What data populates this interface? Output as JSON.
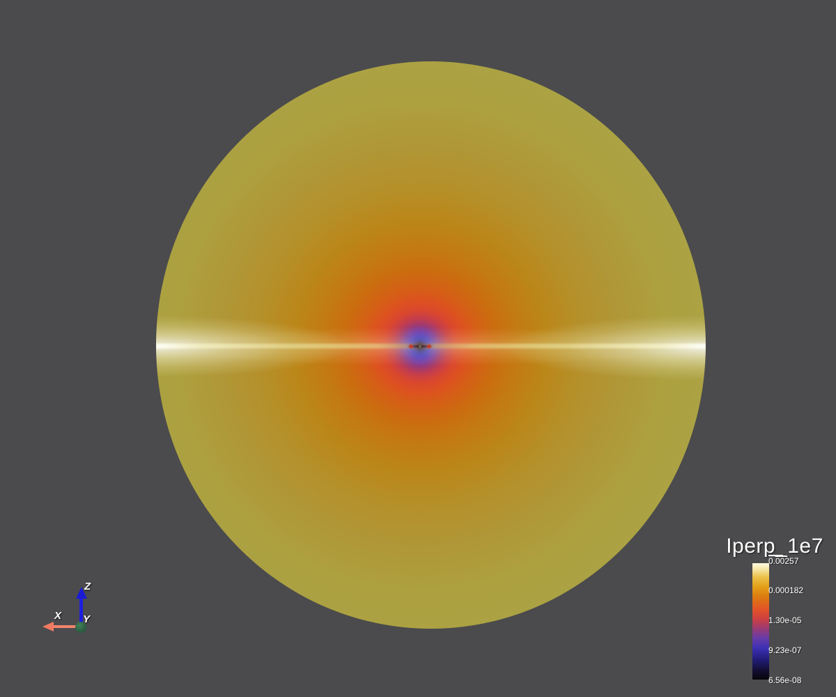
{
  "viewport": {
    "background_color": "#4b4b4d"
  },
  "color_legend": {
    "title": "Iperp_1e7",
    "scale": "logarithmic",
    "tick_labels": [
      "0.00257",
      "0.000182",
      "1.30e-05",
      "9.23e-07",
      "6.56e-08"
    ],
    "colormap_low_to_high": [
      "#070609",
      "#231e7e",
      "#3c30b4",
      "#6a3ba8",
      "#a23a6c",
      "#d0413e",
      "#e25526",
      "#db7a10",
      "#e4a118",
      "#ecc04a",
      "#f6e7a8",
      "#fdfae0"
    ]
  },
  "orientation_axes": {
    "x": {
      "label": "X",
      "color": "#f07b62"
    },
    "y": {
      "label": "Y",
      "color": "#2d7048"
    },
    "z": {
      "label": "Z",
      "color": "#1e1ede"
    }
  },
  "scene_object": {
    "outer_color": "#aba244",
    "gold_band_color": "#bb8618",
    "orange_band_color": "#d55f16",
    "red_ring_color": "#da472e",
    "purple_halo_color": "#7c3b9e",
    "blue_halo_color": "#3d32c4",
    "core_color": "#101020",
    "equator_highlight_color": "#f2f2e8"
  }
}
